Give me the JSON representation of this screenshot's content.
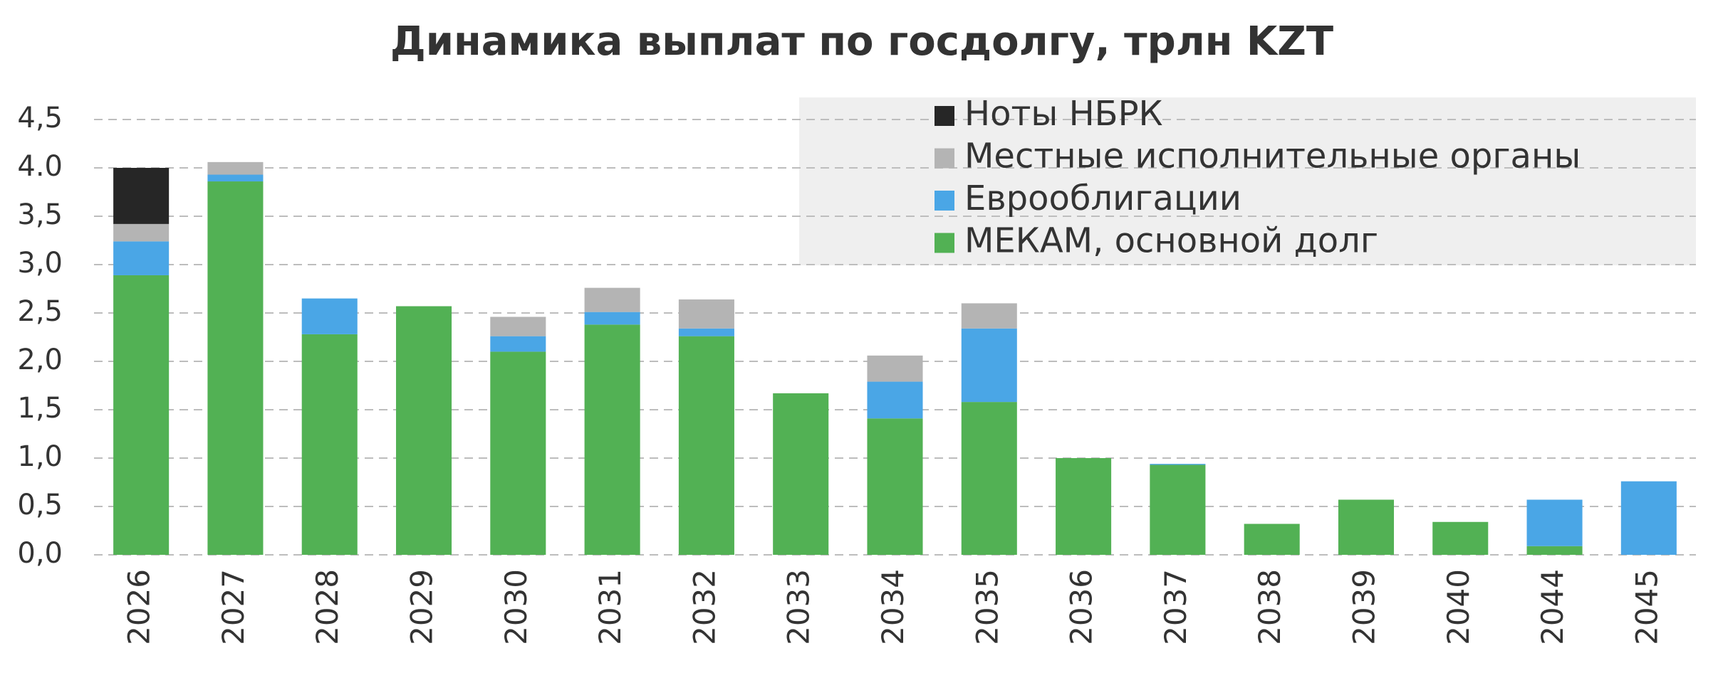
{
  "chart_data": {
    "type": "stacked_bar",
    "title": "Динамика выплат по госдолгу, трлн KZT",
    "categories": [
      "2026",
      "2027",
      "2028",
      "2029",
      "2030",
      "2031",
      "2032",
      "2033",
      "2034",
      "2035",
      "2036",
      "2037",
      "2038",
      "2039",
      "2040",
      "2044",
      "2045"
    ],
    "series": [
      {
        "name": "МЕКАМ, основной долг",
        "color": "#52b154",
        "values": [
          2.89,
          3.86,
          2.28,
          2.57,
          2.1,
          2.38,
          2.26,
          1.67,
          1.41,
          1.58,
          1.0,
          0.93,
          0.32,
          0.57,
          0.34,
          0.09,
          0
        ]
      },
      {
        "name": "Еврооблигации",
        "color": "#4aa6e6",
        "values": [
          0.35,
          0.07,
          0.37,
          0,
          0.16,
          0.13,
          0.08,
          0,
          0.38,
          0.76,
          0,
          0.01,
          0,
          0,
          0,
          0.48,
          0.76
        ]
      },
      {
        "name": "Местные исполнительные органы",
        "color": "#b4b4b4",
        "values": [
          0.18,
          0.13,
          0,
          0,
          0.2,
          0.25,
          0.3,
          0,
          0.27,
          0.26,
          0,
          0,
          0,
          0,
          0,
          0,
          0
        ]
      },
      {
        "name": "Ноты НБРК",
        "color": "#262626",
        "values": [
          0.58,
          0,
          0,
          0,
          0,
          0,
          0,
          0,
          0,
          0,
          0,
          0,
          0,
          0,
          0,
          0,
          0
        ]
      }
    ],
    "ylim": [
      0,
      4.5
    ],
    "yticks": [
      {
        "value": 0,
        "label": "0,0"
      },
      {
        "value": 0.5,
        "label": "0,5"
      },
      {
        "value": 1,
        "label": "1,0"
      },
      {
        "value": 1.5,
        "label": "1,5"
      },
      {
        "value": 2,
        "label": "2,0"
      },
      {
        "value": 2.5,
        "label": "2,5"
      },
      {
        "value": 3,
        "label": "3,0"
      },
      {
        "value": 3.5,
        "label": "3,5"
      },
      {
        "value": 4,
        "label": "4.0"
      },
      {
        "value": 4.5,
        "label": "4,5"
      }
    ],
    "grid": true,
    "legend": "top-right"
  }
}
